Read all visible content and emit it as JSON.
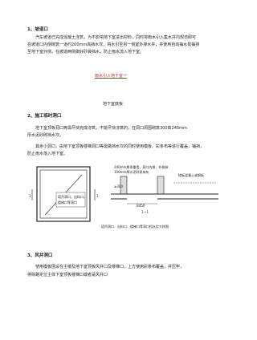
{
  "section1": {
    "heading": "1、坡道口",
    "lines": [
      "汽车坡道已完成混凝土浇筑，为不影响地下室进出材料，同时将雨水引入集水井内规范即可",
      "在坡道口内侧砌筑一道约200mm高挡水坎，将水引至另一侧室外排水井，并使用自动抽水泵抽排",
      "至地下室外侧，在坡道两侧做好砂袋挡水，防止雨水流入地下室。"
    ],
    "note": "雨水引入地下室一"
  },
  "floor_label": "地下室底板",
  "section2": {
    "heading": "2、施工临时洞口",
    "lines": [
      "地下室顶板洞口等需尽快完成浇筑，不能尽快浇筑的，在洞口周围砌筑300高240mm",
      "厚水泥砂砖挡水坎。"
    ],
    "lines2": [
      "其余小洞口，由地下室顶板楼梯洞口等需做挡水坎的同时使用模板、彩条布等进行覆盖，铺挡，",
      "防止雨水落入地下室。"
    ]
  },
  "diagram": {
    "plan_label": [
      "塔吊洞口，出料口，",
      "楼梯口等洞口"
    ],
    "section_mark": "1",
    "wall_note": [
      "240mm厚承重墙，洞口内侧，外侧抹",
      "100mm厚水泥砂浆抹灰"
    ],
    "slab_note": "楼板混凝土或钢板",
    "dim_height": "≥300",
    "dim_width": "B450",
    "section_title": "1—1",
    "caption": "塔吊洞口、出料口、楼梯口等洞口挡水坎大样图"
  },
  "section3": {
    "heading": "3、风井洞口",
    "lines": [
      "使用模板围设在主楼及地下室顶板风井口及楼梯口，上方使用彩条布覆盖，并压牢，",
      "排除路定位主体下室顶板楼梯口或者是风井口"
    ]
  }
}
